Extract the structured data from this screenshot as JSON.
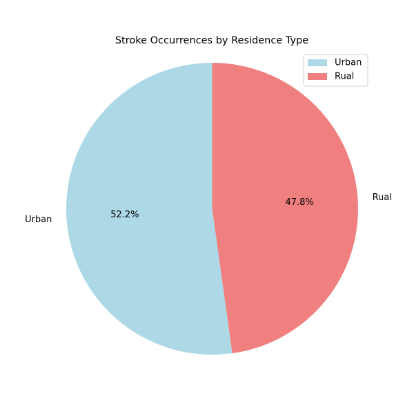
{
  "chart_data": {
    "type": "pie",
    "title": "Stroke Occurrences by Residence Type",
    "categories": [
      "Urban",
      "Rual"
    ],
    "values": [
      52.2,
      47.8
    ],
    "value_format": "percent",
    "start_angle_deg": 90,
    "direction": "counterclockwise",
    "colors": [
      "#add8e6",
      "#f08080"
    ],
    "legend": {
      "placement": "top-right",
      "entries": [
        "Urban",
        "Rual"
      ]
    },
    "autopct": [
      "52.2%",
      "47.8%"
    ]
  }
}
